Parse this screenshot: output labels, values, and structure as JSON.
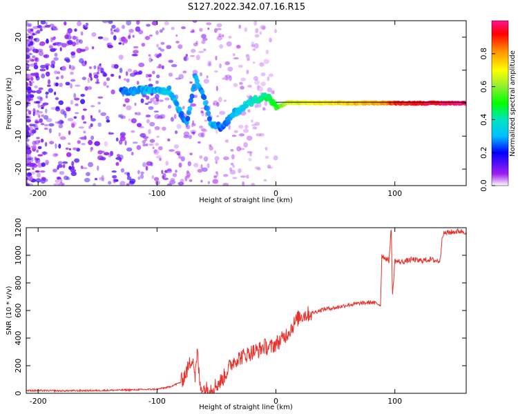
{
  "figure_title": "S127.2022.342.07.16.R15",
  "colors": {
    "snr_line": "#e8302a",
    "ridge_line": "#000000",
    "axis": "#000000"
  },
  "chart_data": [
    {
      "type": "heatmap",
      "name": "spectrogram",
      "xlabel": "Height of straight line (km)",
      "ylabel": "Frequency (Hz)",
      "xlim": [
        -210,
        160
      ],
      "ylim": [
        -25,
        25
      ],
      "xticks": [
        -200,
        -100,
        0,
        100
      ],
      "xtick_labels": [
        "-200",
        "-100",
        "0",
        "100"
      ],
      "yticks": [
        -20,
        -10,
        0,
        10,
        20
      ],
      "ytick_labels": [
        "-20",
        "-10",
        "0",
        "10",
        "20"
      ],
      "colorbar": {
        "label": "Normalized spectral amplitude",
        "range": [
          0,
          1
        ],
        "ticks": [
          0.0,
          0.2,
          0.4,
          0.6,
          0.8
        ],
        "tick_labels": [
          "0.0",
          "0.2",
          "0.4",
          "0.6",
          "0.8"
        ]
      },
      "ridge_line_hz": 0.3,
      "signal_track": [
        {
          "h": -130,
          "f": 3.5,
          "a": 0.25
        },
        {
          "h": -120,
          "f": 3.6,
          "a": 0.28
        },
        {
          "h": -110,
          "f": 4.0,
          "a": 0.3
        },
        {
          "h": -100,
          "f": 4.2,
          "a": 0.3
        },
        {
          "h": -90,
          "f": 3.8,
          "a": 0.32
        },
        {
          "h": -85,
          "f": 1.0,
          "a": 0.3
        },
        {
          "h": -80,
          "f": -3.0,
          "a": 0.28
        },
        {
          "h": -75,
          "f": -6.0,
          "a": 0.25
        },
        {
          "h": -68,
          "f": 7.5,
          "a": 0.3
        },
        {
          "h": -62,
          "f": 4.0,
          "a": 0.28
        },
        {
          "h": -55,
          "f": -6.0,
          "a": 0.28
        },
        {
          "h": -45,
          "f": -7.5,
          "a": 0.25
        },
        {
          "h": -35,
          "f": -3.0,
          "a": 0.3
        },
        {
          "h": -25,
          "f": -0.5,
          "a": 0.35
        },
        {
          "h": -18,
          "f": 1.0,
          "a": 0.4
        },
        {
          "h": -10,
          "f": 2.0,
          "a": 0.45
        },
        {
          "h": -5,
          "f": 1.5,
          "a": 0.45
        },
        {
          "h": 0,
          "f": -1.5,
          "a": 0.5
        },
        {
          "h": 10,
          "f": 0.2,
          "a": 0.65
        },
        {
          "h": 30,
          "f": 0.1,
          "a": 0.7
        },
        {
          "h": 60,
          "f": 0.0,
          "a": 0.75
        },
        {
          "h": 90,
          "f": 0.1,
          "a": 0.8
        },
        {
          "h": 100,
          "f": 0.0,
          "a": 0.9
        },
        {
          "h": 130,
          "f": 0.0,
          "a": 0.95
        },
        {
          "h": 160,
          "f": 0.0,
          "a": 1.0
        }
      ]
    },
    {
      "type": "line",
      "name": "snr",
      "xlabel": "Height of straight line (km)",
      "ylabel": "SNR (10 * v/v)",
      "xlim": [
        -210,
        160
      ],
      "ylim": [
        0,
        1200
      ],
      "xticks": [
        -200,
        -100,
        0,
        100
      ],
      "xtick_labels": [
        "-200",
        "-100",
        "0",
        "100"
      ],
      "yticks": [
        0,
        200,
        400,
        600,
        800,
        1000,
        1200
      ],
      "ytick_labels": [
        "0",
        "200",
        "400",
        "600",
        "800",
        "1000",
        "1200"
      ],
      "x": [
        -210,
        -180,
        -150,
        -120,
        -100,
        -90,
        -80,
        -75,
        -70,
        -68,
        -66,
        -64,
        -62,
        -60,
        -55,
        -50,
        -45,
        -40,
        -35,
        -30,
        -25,
        -20,
        -15,
        -10,
        -5,
        0,
        5,
        10,
        15,
        20,
        30,
        40,
        50,
        60,
        70,
        80,
        85,
        88,
        89,
        92,
        95,
        97,
        98,
        100,
        105,
        110,
        115,
        120,
        125,
        130,
        135,
        138,
        140,
        142,
        145,
        150,
        155,
        160
      ],
      "y": [
        20,
        18,
        20,
        25,
        30,
        45,
        80,
        160,
        270,
        120,
        300,
        60,
        40,
        30,
        35,
        60,
        100,
        180,
        240,
        260,
        280,
        300,
        310,
        340,
        330,
        360,
        390,
        440,
        500,
        560,
        580,
        610,
        620,
        640,
        650,
        660,
        650,
        640,
        1000,
        980,
        960,
        1200,
        700,
        960,
        950,
        960,
        970,
        960,
        965,
        970,
        960,
        960,
        1150,
        1160,
        1165,
        1170,
        1175,
        1170
      ]
    }
  ]
}
